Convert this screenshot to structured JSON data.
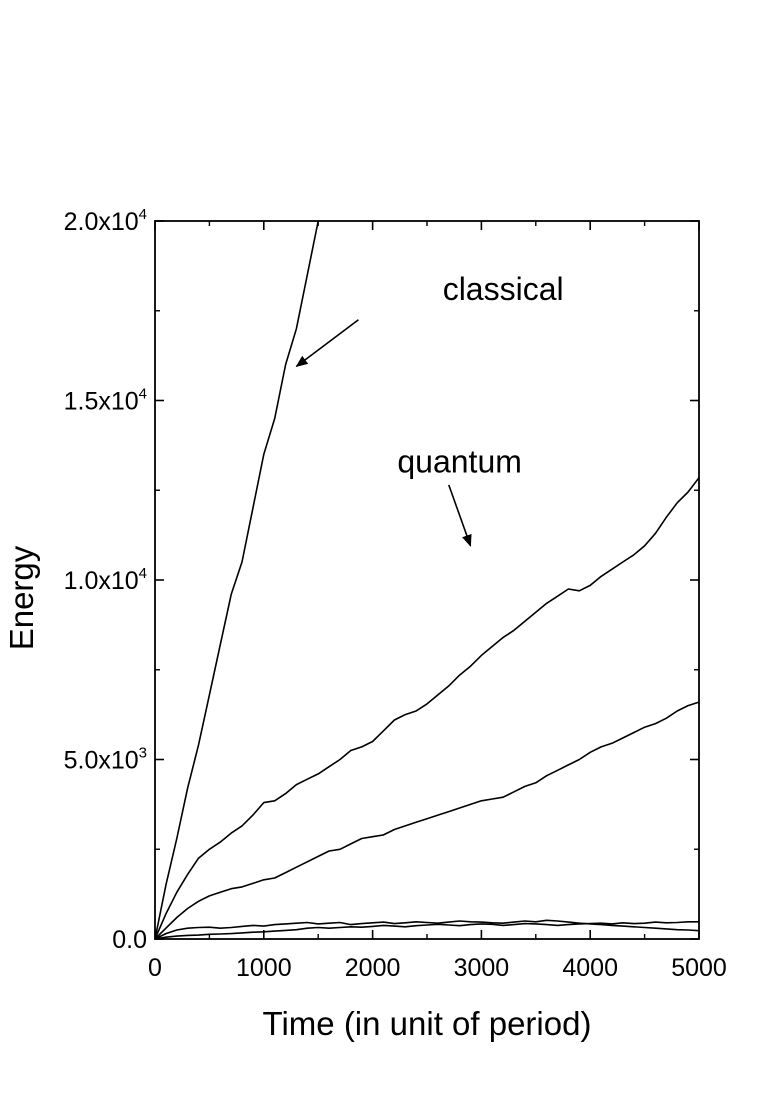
{
  "chart_data": {
    "type": "line",
    "title": "",
    "xlabel": "Time (in unit of period)",
    "ylabel": "Energy",
    "xlim": [
      0,
      5000
    ],
    "ylim": [
      0,
      20000
    ],
    "grid": false,
    "line_color": "#000000",
    "x_ticks": [
      {
        "value": 0,
        "label": "0"
      },
      {
        "value": 1000,
        "label": "1000"
      },
      {
        "value": 2000,
        "label": "2000"
      },
      {
        "value": 3000,
        "label": "3000"
      },
      {
        "value": 4000,
        "label": "4000"
      },
      {
        "value": 5000,
        "label": "5000"
      }
    ],
    "y_ticks": [
      {
        "value": 0,
        "mant": "0.0",
        "exp": ""
      },
      {
        "value": 5000,
        "mant": "5.0x10",
        "exp": "3"
      },
      {
        "value": 10000,
        "mant": "1.0x10",
        "exp": "4"
      },
      {
        "value": 15000,
        "mant": "1.5x10",
        "exp": "4"
      },
      {
        "value": 20000,
        "mant": "2.0x10",
        "exp": "4"
      }
    ],
    "series": [
      {
        "x": [
          0,
          100,
          200,
          300,
          400,
          500,
          600,
          700,
          800,
          900,
          1000,
          1100,
          1200,
          1300,
          1400,
          1500
        ],
        "values": [
          0,
          1500,
          2800,
          4200,
          5400,
          6800,
          8200,
          9600,
          10500,
          12000,
          13500,
          14500,
          16000,
          17000,
          18500,
          20000
        ]
      },
      {
        "x": [
          0,
          100,
          200,
          300,
          400,
          500,
          600,
          700,
          800,
          900,
          1000,
          1100,
          1200,
          1300,
          1400,
          1500,
          1600,
          1700,
          1800,
          1900,
          2000,
          2100,
          2200,
          2300,
          2400,
          2500,
          2600,
          2700,
          2800,
          2900,
          3000,
          3100,
          3200,
          3300,
          3400,
          3500,
          3600,
          3700,
          3800,
          3900,
          4000,
          4100,
          4200,
          4300,
          4400,
          4500,
          4600,
          4700,
          4800,
          4900,
          5000
        ],
        "values": [
          0,
          700,
          1300,
          1800,
          2250,
          2500,
          2700,
          2950,
          3150,
          3450,
          3800,
          3850,
          4050,
          4300,
          4450,
          4600,
          4800,
          5000,
          5250,
          5350,
          5500,
          5800,
          6100,
          6250,
          6350,
          6550,
          6800,
          7050,
          7350,
          7600,
          7900,
          8150,
          8400,
          8600,
          8850,
          9100,
          9350,
          9550,
          9750,
          9700,
          9850,
          10100,
          10300,
          10500,
          10700,
          10950,
          11300,
          11750,
          12150,
          12450,
          12850
        ]
      },
      {
        "x": [
          0,
          100,
          200,
          300,
          400,
          500,
          600,
          700,
          800,
          900,
          1000,
          1100,
          1200,
          1300,
          1400,
          1500,
          1600,
          1700,
          1800,
          1900,
          2000,
          2100,
          2200,
          2300,
          2400,
          2500,
          2600,
          2700,
          2800,
          2900,
          3000,
          3100,
          3200,
          3300,
          3400,
          3500,
          3600,
          3700,
          3800,
          3900,
          4000,
          4100,
          4200,
          4300,
          4400,
          4500,
          4600,
          4700,
          4800,
          4900,
          5000
        ],
        "values": [
          0,
          300,
          600,
          850,
          1050,
          1200,
          1300,
          1400,
          1450,
          1550,
          1650,
          1700,
          1850,
          2000,
          2150,
          2300,
          2450,
          2500,
          2650,
          2800,
          2850,
          2900,
          3050,
          3150,
          3250,
          3350,
          3450,
          3550,
          3650,
          3750,
          3850,
          3900,
          3950,
          4100,
          4250,
          4350,
          4550,
          4700,
          4850,
          5000,
          5200,
          5350,
          5450,
          5600,
          5750,
          5900,
          6000,
          6150,
          6350,
          6500,
          6600
        ]
      },
      {
        "x": [
          0,
          100,
          200,
          300,
          400,
          500,
          600,
          700,
          800,
          900,
          1000,
          1100,
          1200,
          1300,
          1400,
          1500,
          1600,
          1700,
          1800,
          1900,
          2000,
          2100,
          2200,
          2300,
          2400,
          2500,
          2600,
          2700,
          2800,
          2900,
          3000,
          3100,
          3200,
          3300,
          3400,
          3500,
          3600,
          3700,
          3800,
          3900,
          4000,
          4100,
          4200,
          4300,
          4400,
          4500,
          4600,
          4700,
          4800,
          4900,
          5000
        ],
        "values": [
          0,
          150,
          250,
          300,
          320,
          330,
          300,
          320,
          350,
          380,
          360,
          400,
          420,
          440,
          460,
          420,
          440,
          460,
          400,
          430,
          450,
          470,
          430,
          450,
          480,
          460,
          440,
          470,
          500,
          480,
          470,
          450,
          440,
          470,
          500,
          480,
          520,
          500,
          470,
          440,
          420,
          400,
          380,
          360,
          340,
          320,
          300,
          280,
          260,
          250,
          230
        ]
      },
      {
        "x": [
          0,
          100,
          200,
          300,
          400,
          500,
          600,
          700,
          800,
          900,
          1000,
          1100,
          1200,
          1300,
          1400,
          1500,
          1600,
          1700,
          1800,
          1900,
          2000,
          2100,
          2200,
          2300,
          2400,
          2500,
          2600,
          2700,
          2800,
          2900,
          3000,
          3100,
          3200,
          3300,
          3400,
          3500,
          3600,
          3700,
          3800,
          3900,
          4000,
          4100,
          4200,
          4300,
          4400,
          4500,
          4600,
          4700,
          4800,
          4900,
          5000
        ],
        "values": [
          0,
          50,
          80,
          100,
          110,
          130,
          140,
          150,
          170,
          190,
          200,
          220,
          240,
          260,
          300,
          320,
          300,
          320,
          340,
          330,
          350,
          380,
          360,
          340,
          370,
          390,
          410,
          390,
          370,
          400,
          420,
          410,
          380,
          400,
          430,
          420,
          400,
          380,
          400,
          420,
          430,
          440,
          420,
          450,
          430,
          440,
          470,
          450,
          460,
          480,
          480
        ]
      }
    ],
    "annotations": [
      {
        "text": "classical",
        "x": 3200,
        "y": 17800,
        "arrow": {
          "x1": 1870,
          "y1": 17250,
          "x2": 1300,
          "y2": 15950
        }
      },
      {
        "text": "quantum",
        "x": 2800,
        "y": 13000,
        "arrow": {
          "x1": 2700,
          "y1": 12650,
          "x2": 2900,
          "y2": 10950
        }
      }
    ]
  }
}
